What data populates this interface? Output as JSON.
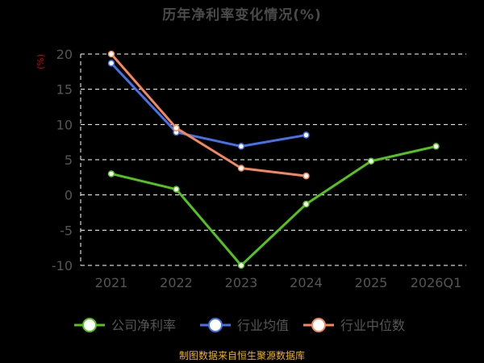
{
  "chart_data": {
    "type": "line",
    "title": "历年净利率变化情况(%)",
    "y_unit": "(%)",
    "categories": [
      "2021",
      "2022",
      "2023",
      "2024",
      "2025",
      "2026Q1"
    ],
    "ylim": [
      -10,
      20
    ],
    "yticks": [
      20,
      15,
      10,
      5,
      0,
      -5,
      -10
    ],
    "grid": true,
    "legend_position": "bottom",
    "series": [
      {
        "name": "公司净利率",
        "color": "#52c41a",
        "values": [
          3.0,
          0.8,
          -10.0,
          -1.3,
          4.8,
          6.9
        ]
      },
      {
        "name": "行业均值",
        "color": "#4472e8",
        "values": [
          18.7,
          8.9,
          6.9,
          8.5,
          null,
          null
        ]
      },
      {
        "name": "行业中位数",
        "color": "#f5875a",
        "values": [
          20.0,
          9.5,
          3.8,
          2.7,
          null,
          null
        ]
      }
    ]
  },
  "footer": {
    "source": "制图数据来自恒生聚源数据库"
  }
}
